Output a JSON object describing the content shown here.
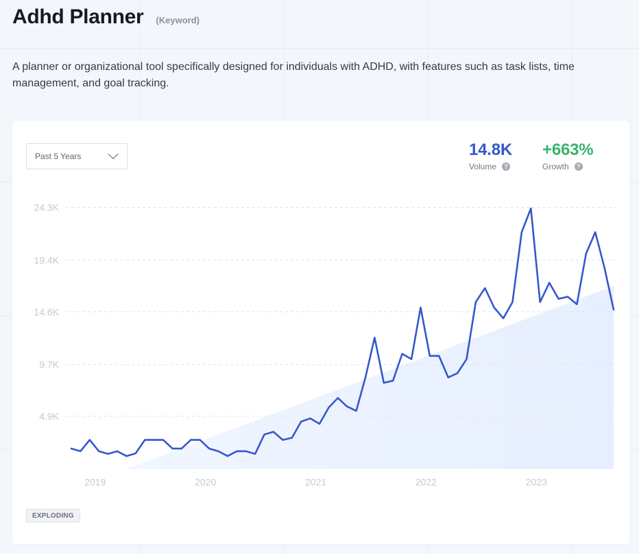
{
  "header": {
    "title": "Adhd Planner",
    "tag": "(Keyword)"
  },
  "description": "A planner or organizational tool specifically designed for individuals with ADHD, with features such as task lists, time management, and goal tracking.",
  "range_select": {
    "value": "Past 5 Years",
    "icon": "chevron-down-icon"
  },
  "metrics": {
    "volume": {
      "value": "14.8K",
      "label": "Volume",
      "help_icon": "help-icon",
      "color": "#3557cc"
    },
    "growth": {
      "value": "+663%",
      "label": "Growth",
      "help_icon": "help-icon",
      "color": "#37b46b"
    }
  },
  "badge": "EXPLODING",
  "colors": {
    "line": "#3557cc",
    "trend_fill": "#e6efff",
    "gridline": "#dfe3ea",
    "tick_label": "#c3c9d6"
  },
  "chart_data": {
    "type": "line",
    "title": "",
    "xlabel": "",
    "ylabel": "",
    "ylim": [
      0,
      25000
    ],
    "y_ticks": [
      {
        "value": 4900,
        "label": "4.9K"
      },
      {
        "value": 9700,
        "label": "9.7K"
      },
      {
        "value": 14600,
        "label": "14.6K"
      },
      {
        "value": 19400,
        "label": "19.4K"
      },
      {
        "value": 24300,
        "label": "24.3K"
      }
    ],
    "x_ticks": [
      {
        "index": 2,
        "label": "2019"
      },
      {
        "index": 14,
        "label": "2020"
      },
      {
        "index": 26,
        "label": "2021"
      },
      {
        "index": 38,
        "label": "2022"
      },
      {
        "index": 50,
        "label": "2023"
      }
    ],
    "grid": true,
    "legend": "none",
    "x": [
      "2018-11",
      "2018-12",
      "2019-01",
      "2019-02",
      "2019-03",
      "2019-04",
      "2019-05",
      "2019-06",
      "2019-07",
      "2019-08",
      "2019-09",
      "2019-10",
      "2019-11",
      "2019-12",
      "2020-01",
      "2020-02",
      "2020-03",
      "2020-04",
      "2020-05",
      "2020-06",
      "2020-07",
      "2020-08",
      "2020-09",
      "2020-10",
      "2020-11",
      "2020-12",
      "2021-01",
      "2021-02",
      "2021-03",
      "2021-04",
      "2021-05",
      "2021-06",
      "2021-07",
      "2021-08",
      "2021-09",
      "2021-10",
      "2021-11",
      "2021-12",
      "2022-01",
      "2022-02",
      "2022-03",
      "2022-04",
      "2022-05",
      "2022-06",
      "2022-07",
      "2022-08",
      "2022-09",
      "2022-10",
      "2022-11",
      "2022-12",
      "2023-01",
      "2023-02",
      "2023-03",
      "2023-04",
      "2023-05",
      "2023-06",
      "2023-07",
      "2023-08",
      "2023-09",
      "2023-10"
    ],
    "series": [
      {
        "name": "",
        "values": [
          1900,
          1650,
          2700,
          1650,
          1400,
          1650,
          1200,
          1450,
          2700,
          2700,
          2700,
          1900,
          1900,
          2700,
          2700,
          1900,
          1650,
          1200,
          1650,
          1650,
          1400,
          3200,
          3450,
          2700,
          2900,
          4400,
          4700,
          4200,
          5700,
          6600,
          5800,
          5400,
          8500,
          12200,
          8000,
          8200,
          10700,
          10200,
          15000,
          10500,
          10500,
          8500,
          8900,
          10200,
          15500,
          16800,
          15000,
          14000,
          15500,
          22000,
          24200,
          15500,
          17300,
          15800,
          16000,
          15300,
          20000,
          22000,
          18700,
          14800
        ]
      }
    ],
    "trend": {
      "start_index": 6,
      "start_value": 0,
      "end_index": 59,
      "end_value": 17000
    }
  }
}
